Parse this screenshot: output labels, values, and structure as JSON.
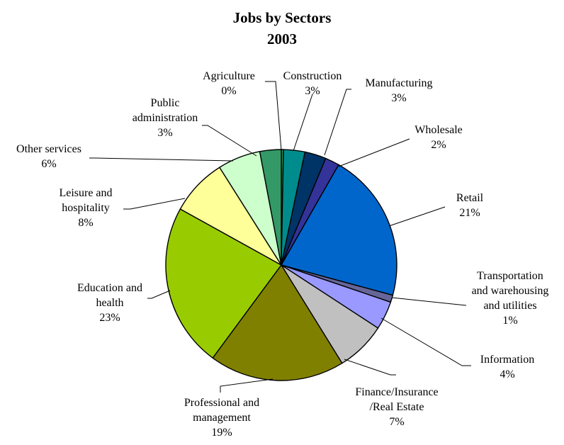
{
  "chart_data": {
    "type": "pie",
    "title": "Jobs by Sectors",
    "subtitle": "2003",
    "slices": [
      {
        "label": [
          "Agriculture"
        ],
        "value": 0.3,
        "pct": "0%",
        "color": "#2e9a63"
      },
      {
        "label": [
          "Construction"
        ],
        "value": 3,
        "pct": "3%",
        "color": "#008c8c"
      },
      {
        "label": [
          "Manufacturing"
        ],
        "value": 3,
        "pct": "3%",
        "color": "#003366"
      },
      {
        "label": [
          "Wholesale"
        ],
        "value": 2,
        "pct": "2%",
        "color": "#33339a"
      },
      {
        "label": [
          "Retail"
        ],
        "value": 21,
        "pct": "21%",
        "color": "#0066cc"
      },
      {
        "label": [
          "Transportation",
          "and warehousing",
          "and utilities"
        ],
        "value": 1,
        "pct": "1%",
        "color": "#666699"
      },
      {
        "label": [
          "Information"
        ],
        "value": 4,
        "pct": "4%",
        "color": "#9999ff"
      },
      {
        "label": [
          "Finance/Insurance",
          "/Real Estate"
        ],
        "value": 7,
        "pct": "7%",
        "color": "#c0c0c0"
      },
      {
        "label": [
          "Professional and",
          "management"
        ],
        "value": 19,
        "pct": "19%",
        "color": "#808000"
      },
      {
        "label": [
          "Education and",
          "health"
        ],
        "value": 23,
        "pct": "23%",
        "color": "#99cc00"
      },
      {
        "label": [
          "Leisure and",
          "hospitality"
        ],
        "value": 8,
        "pct": "8%",
        "color": "#ffff99"
      },
      {
        "label": [
          "Other services"
        ],
        "value": 6,
        "pct": "6%",
        "color": "#ccffcc"
      },
      {
        "label": [
          "Public",
          "administration"
        ],
        "value": 3,
        "pct": "3%",
        "color": "#339966"
      }
    ],
    "start_angle_deg": 0,
    "direction": "clockwise",
    "legend": "none"
  }
}
